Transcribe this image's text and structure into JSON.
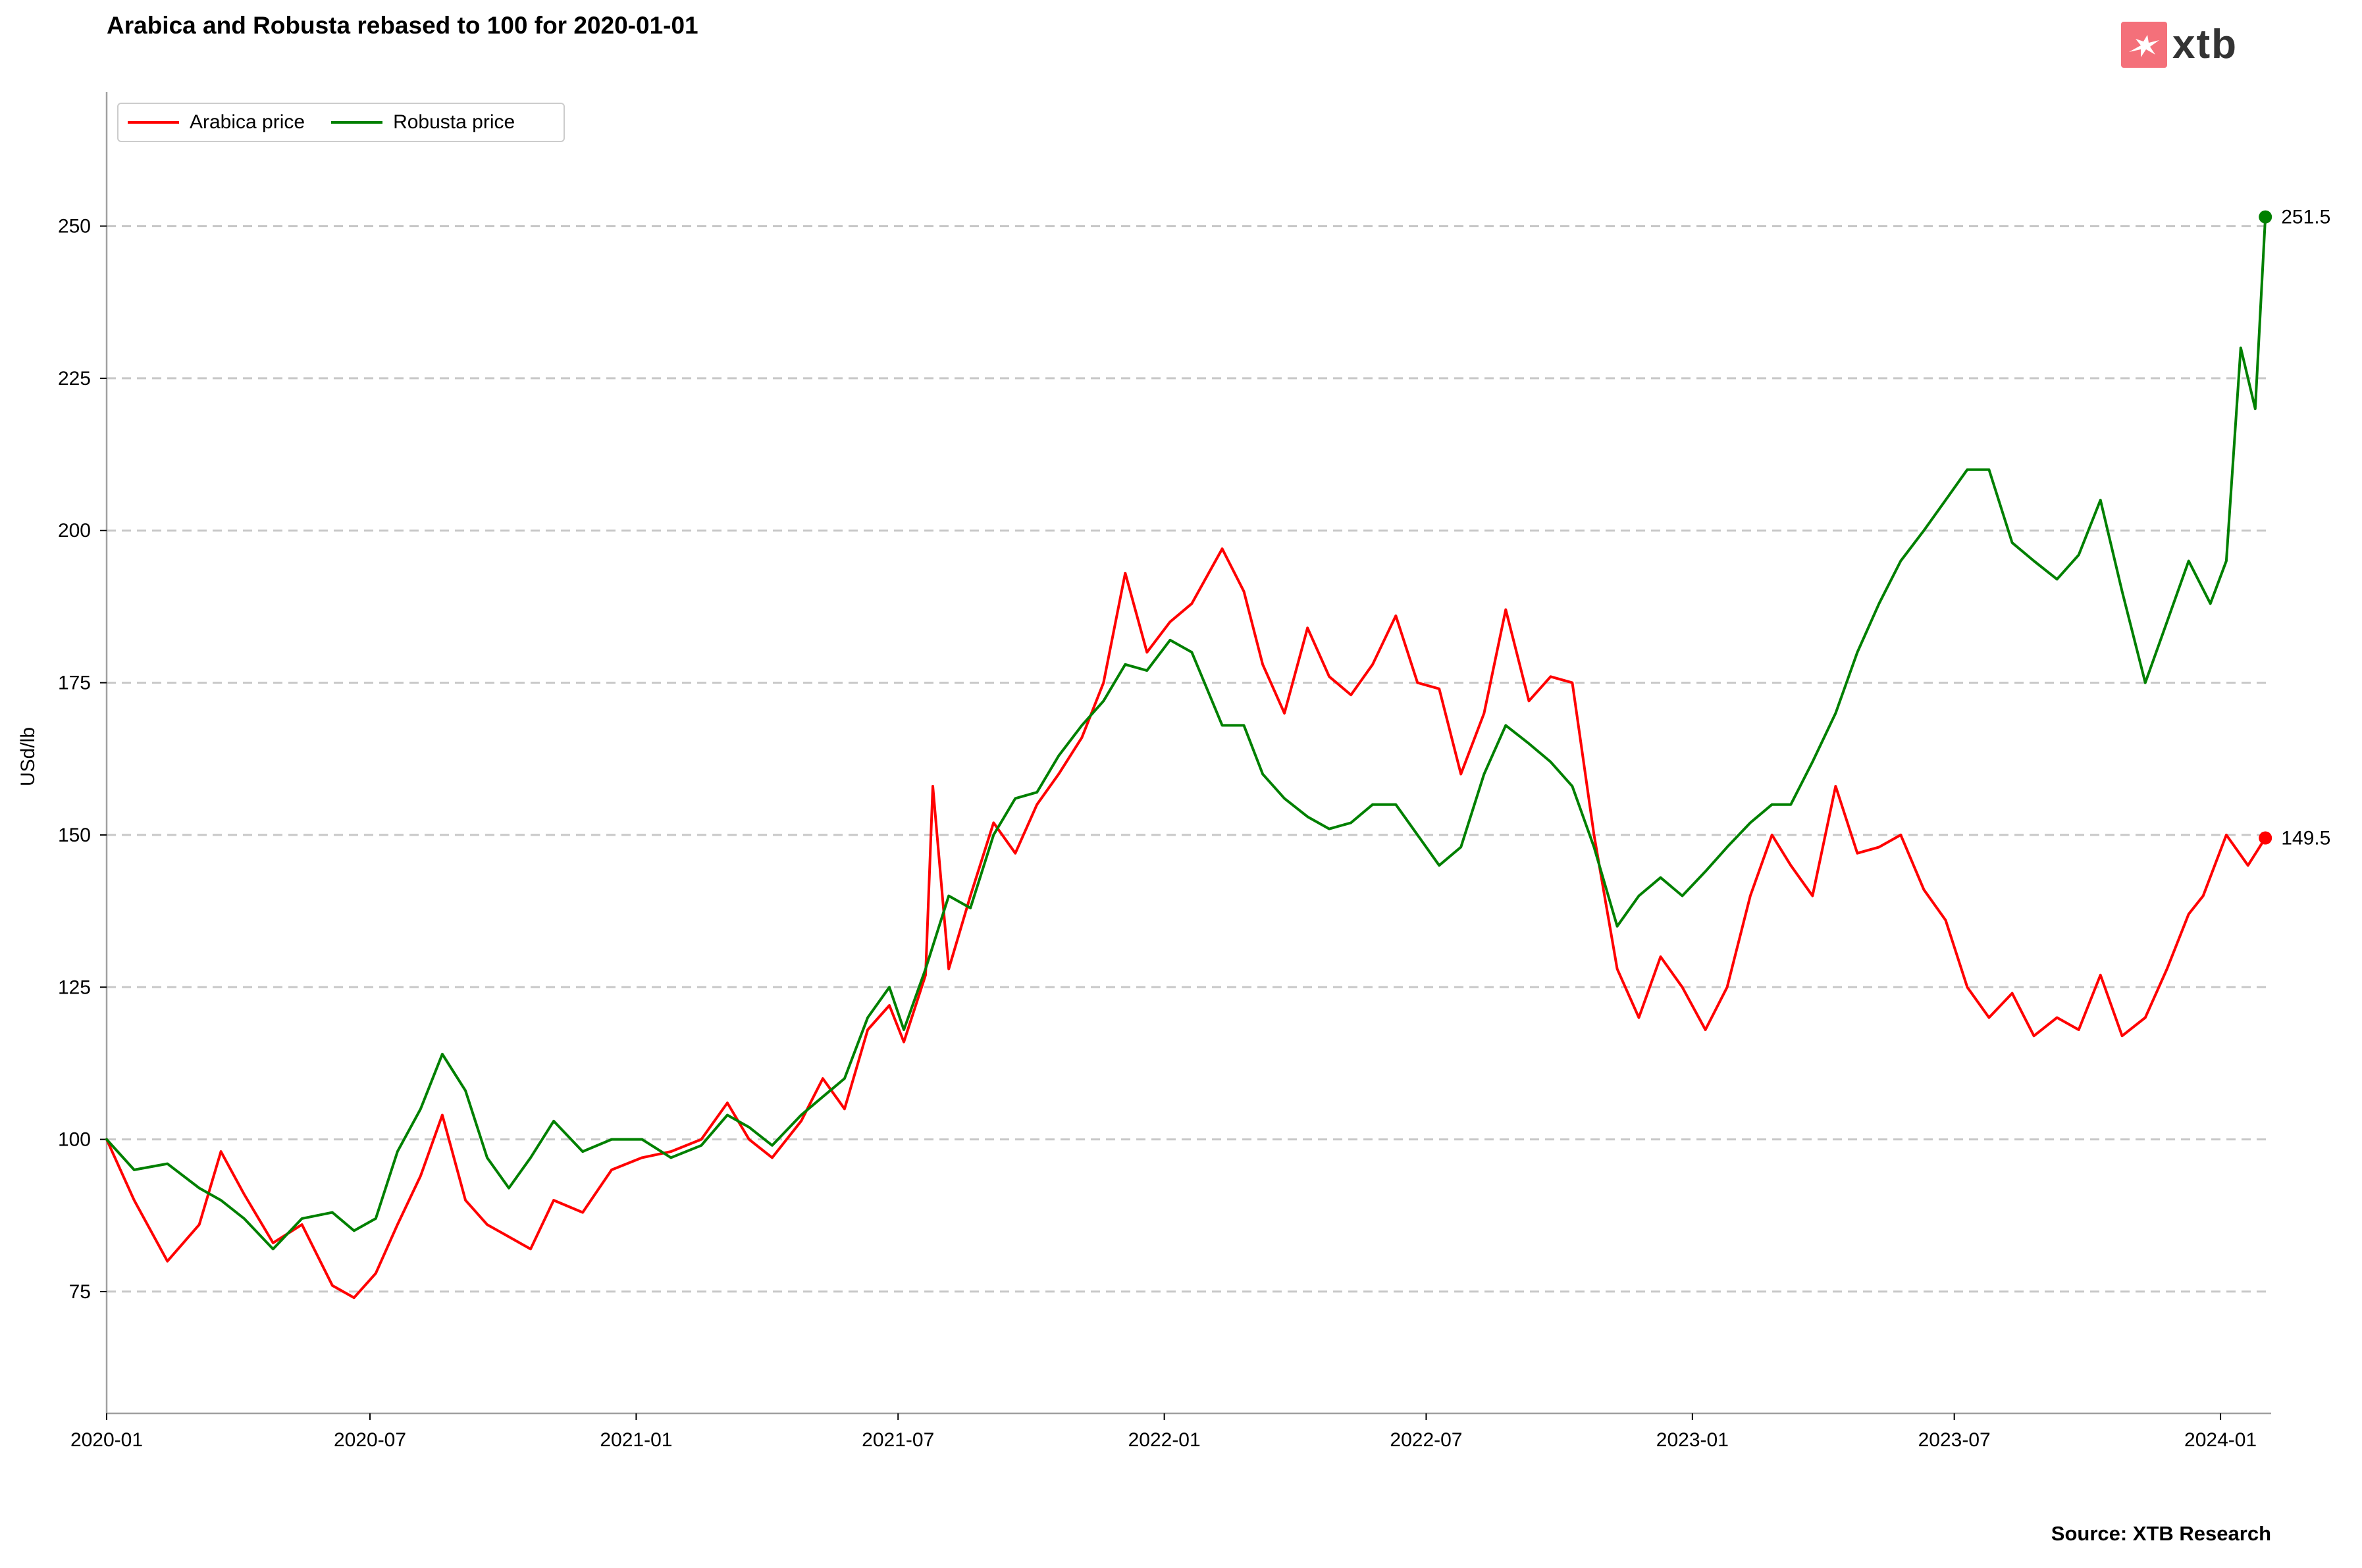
{
  "title": "Arabica and Robusta rebased to 100 for 2020-01-01",
  "source": "Source: XTB Research",
  "logo": {
    "text": "xtb",
    "icon": "xtb-logo-icon",
    "color": "#f4707a"
  },
  "chart_data": {
    "type": "line",
    "title": "Arabica and Robusta rebased to 100 for 2020-01-01",
    "xlabel": "",
    "ylabel": "USd/lb",
    "xlim": [
      "2020-01-01",
      "2024-02-05"
    ],
    "ylim": [
      55,
      272
    ],
    "yticks": [
      75,
      100,
      125,
      150,
      175,
      200,
      225,
      250
    ],
    "xtick_labels": [
      "2020-01",
      "2020-07",
      "2021-01",
      "2021-07",
      "2022-01",
      "2022-07",
      "2023-01",
      "2023-07",
      "2024-01"
    ],
    "grid": "horizontal dashed",
    "legend_position": "top-left",
    "last_value_labels": [
      "251.5",
      "149.5"
    ],
    "series": [
      {
        "name": "Arabica price",
        "color": "#ff0000",
        "last_value": 149.5,
        "x": [
          "2020-01-01",
          "2020-01-20",
          "2020-02-12",
          "2020-03-05",
          "2020-03-20",
          "2020-04-05",
          "2020-04-25",
          "2020-05-15",
          "2020-06-05",
          "2020-06-20",
          "2020-07-05",
          "2020-07-20",
          "2020-08-05",
          "2020-08-20",
          "2020-09-05",
          "2020-09-20",
          "2020-10-05",
          "2020-10-20",
          "2020-11-05",
          "2020-11-25",
          "2020-12-15",
          "2021-01-05",
          "2021-01-25",
          "2021-02-15",
          "2021-03-05",
          "2021-03-20",
          "2021-04-05",
          "2021-04-25",
          "2021-05-10",
          "2021-05-25",
          "2021-06-10",
          "2021-06-25",
          "2021-07-05",
          "2021-07-20",
          "2021-07-25",
          "2021-08-05",
          "2021-08-20",
          "2021-09-05",
          "2021-09-20",
          "2021-10-05",
          "2021-10-20",
          "2021-11-05",
          "2021-11-20",
          "2021-12-05",
          "2021-12-20",
          "2022-01-05",
          "2022-01-20",
          "2022-02-10",
          "2022-02-25",
          "2022-03-10",
          "2022-03-25",
          "2022-04-10",
          "2022-04-25",
          "2022-05-10",
          "2022-05-25",
          "2022-06-10",
          "2022-06-25",
          "2022-07-10",
          "2022-07-25",
          "2022-08-10",
          "2022-08-25",
          "2022-09-10",
          "2022-09-25",
          "2022-10-10",
          "2022-10-25",
          "2022-11-10",
          "2022-11-25",
          "2022-12-10",
          "2022-12-25",
          "2023-01-10",
          "2023-01-25",
          "2023-02-10",
          "2023-02-25",
          "2023-03-10",
          "2023-03-25",
          "2023-04-10",
          "2023-04-25",
          "2023-05-10",
          "2023-05-25",
          "2023-06-10",
          "2023-06-25",
          "2023-07-10",
          "2023-07-25",
          "2023-08-10",
          "2023-08-25",
          "2023-09-10",
          "2023-09-25",
          "2023-10-10",
          "2023-10-25",
          "2023-11-10",
          "2023-11-25",
          "2023-12-10",
          "2023-12-20",
          "2024-01-05",
          "2024-01-20",
          "2024-02-01"
        ],
        "values": [
          100,
          90,
          80,
          86,
          98,
          91,
          83,
          86,
          76,
          74,
          78,
          86,
          94,
          104,
          90,
          86,
          84,
          82,
          90,
          88,
          95,
          97,
          98,
          100,
          106,
          100,
          97,
          103,
          110,
          105,
          118,
          122,
          116,
          127,
          158,
          128,
          140,
          152,
          147,
          155,
          160,
          166,
          175,
          193,
          180,
          185,
          188,
          197,
          190,
          178,
          170,
          184,
          176,
          173,
          178,
          186,
          175,
          174,
          160,
          170,
          187,
          172,
          176,
          175,
          150,
          128,
          120,
          130,
          125,
          118,
          125,
          140,
          150,
          145,
          140,
          158,
          147,
          148,
          150,
          141,
          136,
          125,
          120,
          124,
          117,
          120,
          118,
          127,
          117,
          120,
          128,
          137,
          140,
          150,
          145,
          149.5
        ]
      },
      {
        "name": "Robusta price",
        "color": "#008000",
        "last_value": 251.5,
        "x": [
          "2020-01-01",
          "2020-01-20",
          "2020-02-12",
          "2020-03-05",
          "2020-03-20",
          "2020-04-05",
          "2020-04-25",
          "2020-05-15",
          "2020-06-05",
          "2020-06-20",
          "2020-07-05",
          "2020-07-20",
          "2020-08-05",
          "2020-08-20",
          "2020-09-05",
          "2020-09-20",
          "2020-10-05",
          "2020-10-20",
          "2020-11-05",
          "2020-11-25",
          "2020-12-15",
          "2021-01-05",
          "2021-01-25",
          "2021-02-15",
          "2021-03-05",
          "2021-03-20",
          "2021-04-05",
          "2021-04-25",
          "2021-05-10",
          "2021-05-25",
          "2021-06-10",
          "2021-06-25",
          "2021-07-05",
          "2021-07-20",
          "2021-08-05",
          "2021-08-20",
          "2021-09-05",
          "2021-09-20",
          "2021-10-05",
          "2021-10-20",
          "2021-11-05",
          "2021-11-20",
          "2021-12-05",
          "2021-12-20",
          "2022-01-05",
          "2022-01-20",
          "2022-02-10",
          "2022-02-25",
          "2022-03-10",
          "2022-03-25",
          "2022-04-10",
          "2022-04-25",
          "2022-05-10",
          "2022-05-25",
          "2022-06-10",
          "2022-06-25",
          "2022-07-10",
          "2022-07-25",
          "2022-08-10",
          "2022-08-25",
          "2022-09-10",
          "2022-09-25",
          "2022-10-10",
          "2022-10-25",
          "2022-11-10",
          "2022-11-25",
          "2022-12-10",
          "2022-12-25",
          "2023-01-10",
          "2023-01-25",
          "2023-02-10",
          "2023-02-25",
          "2023-03-10",
          "2023-03-25",
          "2023-04-10",
          "2023-04-25",
          "2023-05-10",
          "2023-05-25",
          "2023-06-10",
          "2023-06-25",
          "2023-07-10",
          "2023-07-25",
          "2023-08-10",
          "2023-08-25",
          "2023-09-10",
          "2023-09-25",
          "2023-10-10",
          "2023-10-25",
          "2023-11-10",
          "2023-11-25",
          "2023-12-10",
          "2023-12-25",
          "2024-01-05",
          "2024-01-15",
          "2024-01-25",
          "2024-02-01"
        ],
        "values": [
          100,
          95,
          96,
          92,
          90,
          87,
          82,
          87,
          88,
          85,
          87,
          98,
          105,
          114,
          108,
          97,
          92,
          97,
          103,
          98,
          100,
          100,
          97,
          99,
          104,
          102,
          99,
          104,
          107,
          110,
          120,
          125,
          118,
          128,
          140,
          138,
          150,
          156,
          157,
          163,
          168,
          172,
          178,
          177,
          182,
          180,
          168,
          168,
          160,
          156,
          153,
          151,
          152,
          155,
          155,
          150,
          145,
          148,
          160,
          168,
          165,
          162,
          158,
          148,
          135,
          140,
          143,
          140,
          144,
          148,
          152,
          155,
          155,
          162,
          170,
          180,
          188,
          195,
          200,
          205,
          210,
          210,
          198,
          195,
          192,
          196,
          205,
          190,
          175,
          185,
          195,
          188,
          195,
          230,
          220,
          251.5
        ]
      }
    ]
  }
}
